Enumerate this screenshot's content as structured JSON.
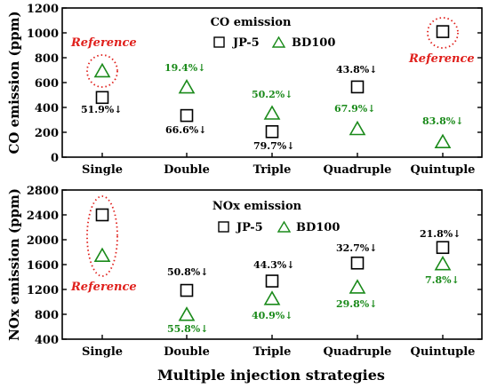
{
  "chart_data": [
    {
      "type": "scatter",
      "title": "CO emission",
      "ylabel": "CO emission (ppm)",
      "xlabel": "",
      "ylim": [
        0,
        1200
      ],
      "yticks": [
        0,
        200,
        400,
        600,
        800,
        1000,
        1200
      ],
      "categories": [
        "Single",
        "Double",
        "Triple",
        "Quadruple",
        "Quintuple"
      ],
      "legend": "top-center",
      "grid": false,
      "series": [
        {
          "name": "JP-5",
          "marker": "square",
          "color": "#000000",
          "values": [
            480,
            335,
            205,
            565,
            1010
          ]
        },
        {
          "name": "BD100",
          "marker": "triangle",
          "color": "#1a8a1a",
          "values": [
            690,
            560,
            350,
            225,
            120
          ]
        }
      ],
      "annotations": [
        {
          "text": "Reference",
          "category": "Single",
          "color": "#e0201c"
        },
        {
          "text": "Reference",
          "category": "Quintuple",
          "color": "#e0201c"
        },
        {
          "text": "51.9%↓",
          "category": "Single",
          "color": "#000000"
        },
        {
          "text": "66.6%↓",
          "category": "Double",
          "color": "#000000"
        },
        {
          "text": "79.7%↓",
          "category": "Triple",
          "color": "#000000"
        },
        {
          "text": "43.8%↓",
          "category": "Quadruple",
          "color": "#000000"
        },
        {
          "text": "19.4%↓",
          "category": "Double",
          "color": "#1a8a1a"
        },
        {
          "text": "50.2%↓",
          "category": "Triple",
          "color": "#1a8a1a"
        },
        {
          "text": "67.9%↓",
          "category": "Quadruple",
          "color": "#1a8a1a"
        },
        {
          "text": "83.8%↓",
          "category": "Quintuple",
          "color": "#1a8a1a"
        }
      ]
    },
    {
      "type": "scatter",
      "title": "NOx emission",
      "ylabel": "NOx emission (ppm)",
      "xlabel": "Multiple injection strategies",
      "ylim": [
        400,
        2800
      ],
      "yticks": [
        400,
        800,
        1200,
        1600,
        2000,
        2400,
        2800
      ],
      "categories": [
        "Single",
        "Double",
        "Triple",
        "Quadruple",
        "Quintuple"
      ],
      "legend": "top-center",
      "grid": false,
      "series": [
        {
          "name": "JP-5",
          "marker": "square",
          "color": "#000000",
          "values": [
            2400,
            1185,
            1335,
            1625,
            1875
          ]
        },
        {
          "name": "BD100",
          "marker": "triangle",
          "color": "#1a8a1a",
          "values": [
            1740,
            790,
            1045,
            1230,
            1605
          ]
        }
      ],
      "annotations": [
        {
          "text": "Reference",
          "category": "Single",
          "color": "#e0201c"
        },
        {
          "text": "50.8%↓",
          "category": "Double",
          "color": "#000000"
        },
        {
          "text": "44.3%↓",
          "category": "Triple",
          "color": "#000000"
        },
        {
          "text": "32.7%↓",
          "category": "Quadruple",
          "color": "#000000"
        },
        {
          "text": "21.8%↓",
          "category": "Quintuple",
          "color": "#000000"
        },
        {
          "text": "55.8%↓",
          "category": "Double",
          "color": "#1a8a1a"
        },
        {
          "text": "40.9%↓",
          "category": "Triple",
          "color": "#1a8a1a"
        },
        {
          "text": "29.8%↓",
          "category": "Quadruple",
          "color": "#1a8a1a"
        },
        {
          "text": "7.8%↓",
          "category": "Quintuple",
          "color": "#1a8a1a"
        }
      ]
    }
  ]
}
